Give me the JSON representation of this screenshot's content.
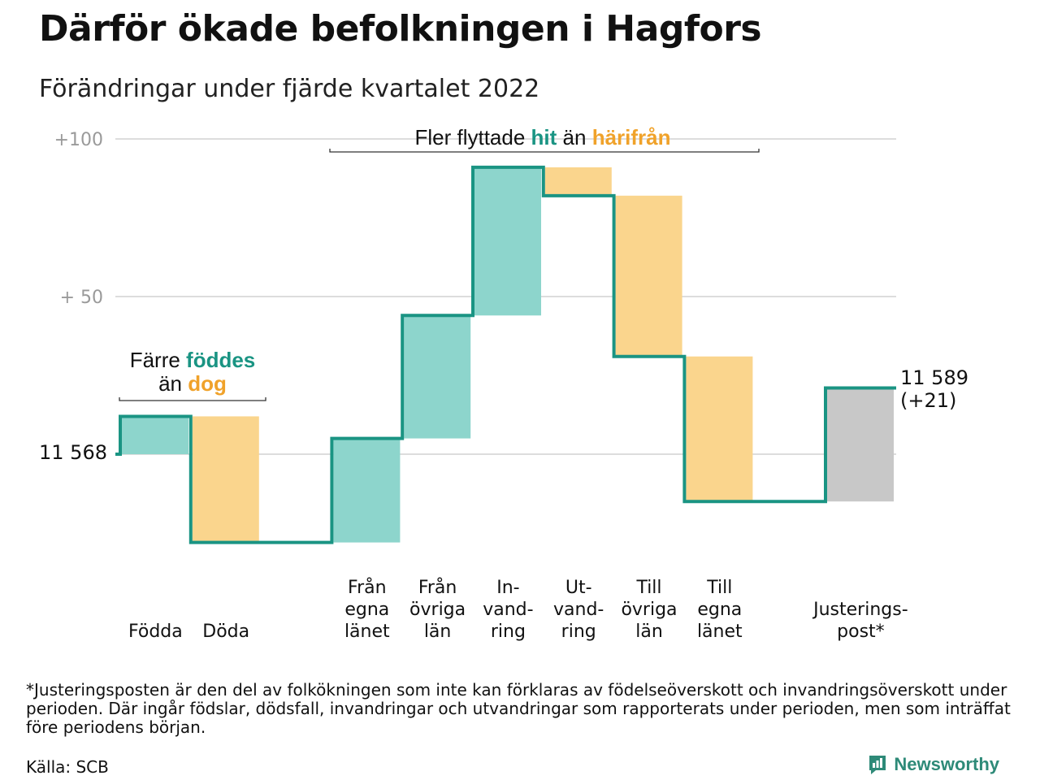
{
  "title": "Därför ökade befolkningen i Hagfors",
  "subtitle": "Förändringar under fjärde kvartalet 2022",
  "colors": {
    "increase": "#8dd5cc",
    "decrease": "#fad58d",
    "adjustment": "#c8c8c8",
    "line": "#1a9483",
    "grid": "#dddddd",
    "teal_text": "#1a9483",
    "orange_text": "#f0a22a"
  },
  "chart_data": {
    "type": "waterfall",
    "start_label": "11 568",
    "end_label_line1": "11 589",
    "end_label_line2": "(+21)",
    "baseline": 11568,
    "y_ticks": [
      {
        "value": 100,
        "label": "+100"
      },
      {
        "value": 50,
        "label": "+ 50"
      }
    ],
    "ylim": [
      -35,
      110
    ],
    "steps": [
      {
        "label": [
          "Födda"
        ],
        "change": 12,
        "kind": "increase"
      },
      {
        "label": [
          "Döda"
        ],
        "change": -40,
        "kind": "decrease"
      },
      {
        "label": [
          ""
        ],
        "change": 0,
        "kind": "gap"
      },
      {
        "label": [
          "Från",
          "egna",
          "länet"
        ],
        "change": 33,
        "kind": "increase"
      },
      {
        "label": [
          "Från",
          "övriga",
          "län"
        ],
        "change": 39,
        "kind": "increase"
      },
      {
        "label": [
          "In-",
          "vand-",
          "ring"
        ],
        "change": 47,
        "kind": "increase"
      },
      {
        "label": [
          "Ut-",
          "vand-",
          "ring"
        ],
        "change": -9,
        "kind": "decrease"
      },
      {
        "label": [
          "Till",
          "övriga",
          "län"
        ],
        "change": -51,
        "kind": "decrease"
      },
      {
        "label": [
          "Till",
          "egna",
          "länet"
        ],
        "change": -46,
        "kind": "decrease"
      },
      {
        "label": [
          ""
        ],
        "change": 0,
        "kind": "gap"
      },
      {
        "label": [
          "Justerings-",
          "post*"
        ],
        "change": 36,
        "kind": "adjustment"
      }
    ],
    "annotations": {
      "births": {
        "part1": "Färre ",
        "part2": "föddes",
        "part3": "än ",
        "part4": "dog"
      },
      "migration": {
        "part1": "Fler flyttade ",
        "part2": "hit",
        "part3": " än ",
        "part4": "härifrån"
      }
    }
  },
  "footnote": "*Justeringsposten är den del av folkökningen som inte kan förklaras av födelseöverskott och invandringsöverskott under perioden. Där ingår födslar, dödsfall, invandringar och utvandringar som rapporterats under perioden, men som inträffat före periodens början.",
  "source": "Källa: SCB",
  "brand": "Newsworthy"
}
